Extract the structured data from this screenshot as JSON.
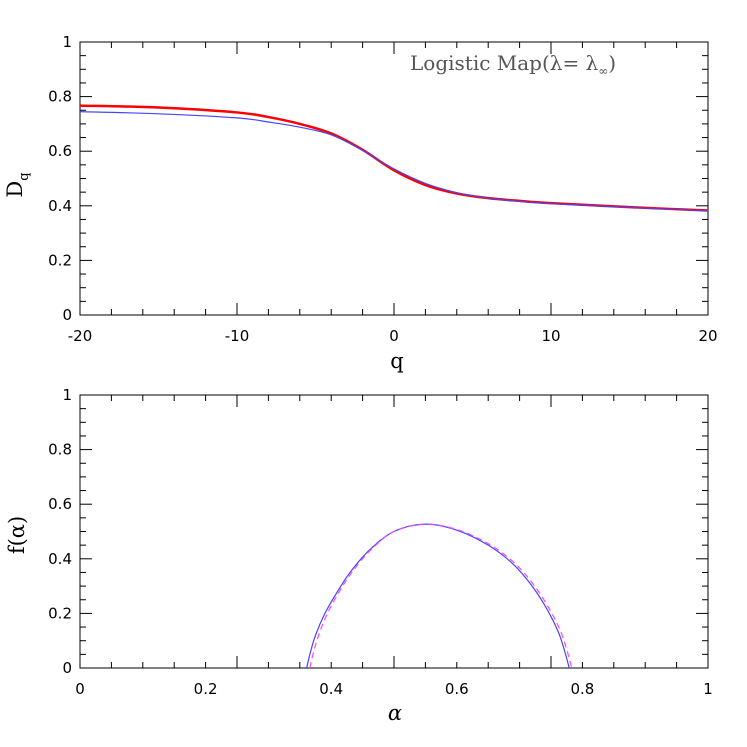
{
  "chart_data": [
    {
      "type": "line",
      "xlabel": "q",
      "ylabel": "D",
      "ylabel_sub": "q",
      "annotation": "Logistic Map(λ= λ",
      "annotation_sub": "∞",
      "annotation_end": ")",
      "xlim": [
        -20,
        20
      ],
      "ylim": [
        0,
        1
      ],
      "xticks": [
        "-20",
        "-10",
        "0",
        "10",
        "20"
      ],
      "yticks": [
        "0",
        "0.2",
        "0.4",
        "0.6",
        "0.8",
        "1"
      ],
      "grid": false,
      "series": [
        {
          "color": "#ff0000",
          "style": "solid-thick",
          "x": [
            -20,
            -15,
            -10,
            -8,
            -6,
            -4,
            -2,
            0,
            2,
            4,
            6,
            8,
            10,
            15,
            20
          ],
          "y": [
            0.767,
            0.76,
            0.742,
            0.725,
            0.7,
            0.665,
            0.605,
            0.53,
            0.476,
            0.445,
            0.428,
            0.418,
            0.41,
            0.395,
            0.383
          ]
        },
        {
          "color": "#4444ff",
          "style": "solid-thin",
          "x": [
            -20,
            -15,
            -10,
            -8,
            -6,
            -4,
            -2,
            0,
            2,
            4,
            6,
            8,
            10,
            15,
            20
          ],
          "y": [
            0.745,
            0.737,
            0.722,
            0.707,
            0.688,
            0.66,
            0.603,
            0.535,
            0.482,
            0.448,
            0.428,
            0.416,
            0.408,
            0.394,
            0.382
          ]
        }
      ]
    },
    {
      "type": "line",
      "xlabel": "α",
      "ylabel": "f(α)",
      "xlim": [
        0,
        1
      ],
      "ylim": [
        0,
        1
      ],
      "xticks": [
        "0",
        "0.2",
        "0.4",
        "0.6",
        "0.8",
        "1"
      ],
      "yticks": [
        "0",
        "0.2",
        "0.4",
        "0.6",
        "0.8",
        "1"
      ],
      "grid": false,
      "series": [
        {
          "color": "#4444ff",
          "style": "solid",
          "x": [
            0.361,
            0.366,
            0.375,
            0.39,
            0.41,
            0.43,
            0.46,
            0.5,
            0.55,
            0.6,
            0.65,
            0.69,
            0.72,
            0.745,
            0.762,
            0.772,
            0.779
          ],
          "y": [
            0,
            0.05,
            0.12,
            0.2,
            0.28,
            0.35,
            0.43,
            0.5,
            0.527,
            0.505,
            0.45,
            0.38,
            0.3,
            0.21,
            0.13,
            0.06,
            0
          ]
        },
        {
          "color": "#ff44ff",
          "style": "dashed",
          "x": [
            0.366,
            0.371,
            0.38,
            0.394,
            0.413,
            0.433,
            0.462,
            0.5,
            0.55,
            0.603,
            0.654,
            0.694,
            0.724,
            0.749,
            0.766,
            0.776,
            0.783
          ],
          "y": [
            0,
            0.05,
            0.12,
            0.2,
            0.28,
            0.35,
            0.43,
            0.5,
            0.527,
            0.505,
            0.45,
            0.38,
            0.3,
            0.21,
            0.13,
            0.06,
            0
          ]
        }
      ]
    }
  ]
}
